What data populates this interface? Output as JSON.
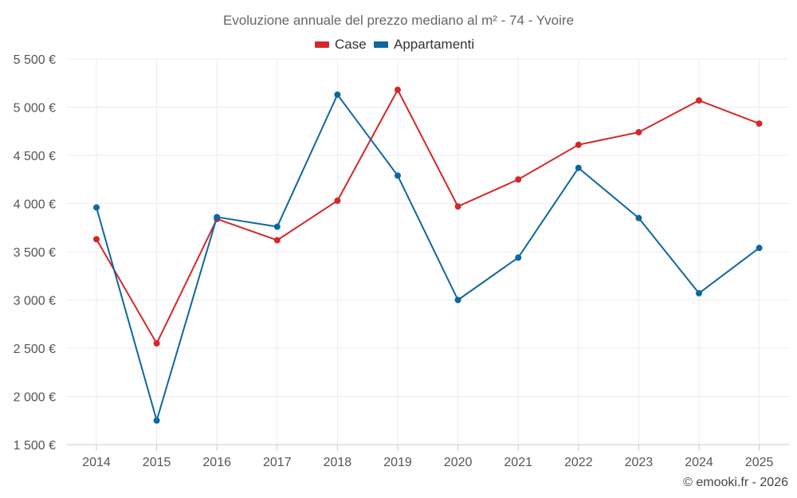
{
  "chart_data": {
    "type": "line",
    "title": "Evoluzione annuale del prezzo mediano al m² - 74 - Yvoire",
    "categories": [
      "2014",
      "2015",
      "2016",
      "2017",
      "2018",
      "2019",
      "2020",
      "2021",
      "2022",
      "2023",
      "2024",
      "2025"
    ],
    "series": [
      {
        "name": "Case",
        "color": "#d62728",
        "values": [
          3630,
          2550,
          3840,
          3620,
          4030,
          5180,
          3970,
          4250,
          4610,
          4740,
          5070,
          4830
        ]
      },
      {
        "name": "Appartamenti",
        "color": "#0d67a1",
        "values": [
          3960,
          1750,
          3860,
          3760,
          5130,
          4290,
          3000,
          3440,
          4370,
          3850,
          3070,
          3540
        ]
      }
    ],
    "ylim": [
      1500,
      5500
    ],
    "yticks": [
      1500,
      2000,
      2500,
      3000,
      3500,
      4000,
      4500,
      5000,
      5500
    ],
    "ytick_labels": [
      "1 500 €",
      "2 000 €",
      "2 500 €",
      "3 000 €",
      "3 500 €",
      "4 000 €",
      "4 500 €",
      "5 000 €",
      "5 500 €"
    ],
    "xlabel": "",
    "ylabel": "",
    "grid": true,
    "legend_position": "top-center"
  },
  "credit": "© emooki.fr - 2026"
}
